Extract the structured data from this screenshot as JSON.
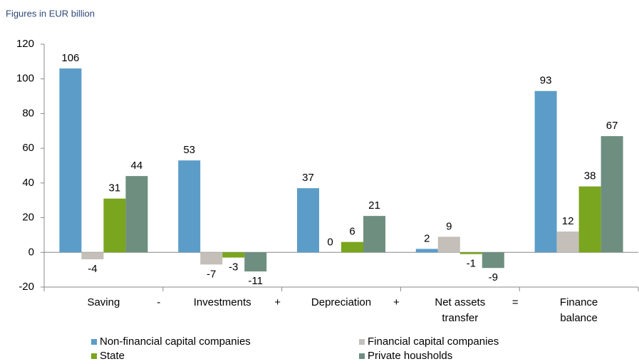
{
  "chart_data": {
    "type": "bar",
    "subtitle": "Figures in EUR billion",
    "categories": [
      "Saving",
      "Investments",
      "Depreciation",
      "Net assets transfer",
      "Finance balance"
    ],
    "operators": [
      "-",
      "+",
      "+",
      "="
    ],
    "series": [
      {
        "name": "Non-financial capital companies",
        "color": "#5b9dc8",
        "values": [
          106,
          53,
          37,
          2,
          93
        ]
      },
      {
        "name": "Financial capital companies",
        "color": "#c5bfb9",
        "values": [
          -4,
          -7,
          0,
          9,
          12
        ]
      },
      {
        "name": "State",
        "color": "#7aa51e",
        "values": [
          31,
          -3,
          6,
          -1,
          38
        ]
      },
      {
        "name": "Private housholds",
        "color": "#6e8f80",
        "values": [
          44,
          -11,
          21,
          -9,
          67
        ]
      }
    ],
    "ylim": [
      -20,
      120
    ],
    "yticks": [
      -20,
      0,
      20,
      40,
      60,
      80,
      100,
      120
    ],
    "grid": false
  }
}
